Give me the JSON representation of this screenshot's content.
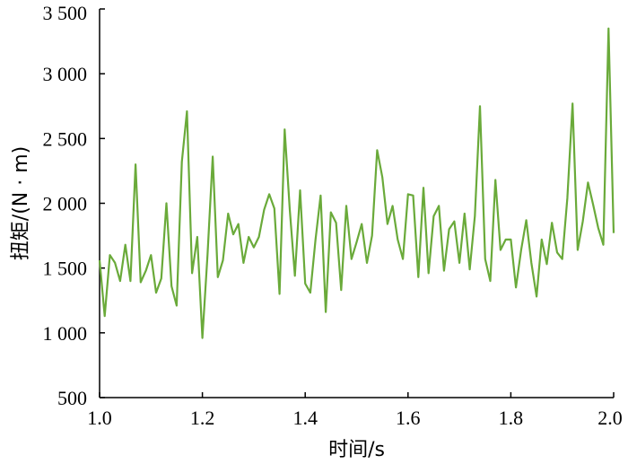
{
  "chart_data": {
    "type": "line",
    "xlabel": "时间/s",
    "ylabel": "扭矩/(N · m)",
    "xlim": [
      1.0,
      2.0
    ],
    "ylim": [
      500,
      3500
    ],
    "x_ticks": [
      {
        "value": 1.0,
        "label": "1.0"
      },
      {
        "value": 1.2,
        "label": "1.2"
      },
      {
        "value": 1.4,
        "label": "1.4"
      },
      {
        "value": 1.6,
        "label": "1.6"
      },
      {
        "value": 1.8,
        "label": "1.8"
      },
      {
        "value": 2.0,
        "label": "2.0"
      }
    ],
    "y_ticks": [
      {
        "value": 500,
        "label": "500"
      },
      {
        "value": 1000,
        "label": "1 000"
      },
      {
        "value": 1500,
        "label": "1 500"
      },
      {
        "value": 2000,
        "label": "2 000"
      },
      {
        "value": 2500,
        "label": "2 500"
      },
      {
        "value": 3000,
        "label": "3 000"
      },
      {
        "value": 3500,
        "label": "3 500"
      }
    ],
    "grid": false,
    "line_color": "#6aaa3a",
    "series": [
      {
        "x": [
          1.0,
          1.01,
          1.02,
          1.03,
          1.04,
          1.05,
          1.06,
          1.07,
          1.08,
          1.09,
          1.1,
          1.11,
          1.12,
          1.13,
          1.14,
          1.15,
          1.16,
          1.17,
          1.18,
          1.19,
          1.2,
          1.21,
          1.22,
          1.23,
          1.24,
          1.25,
          1.26,
          1.27,
          1.28,
          1.29,
          1.3,
          1.31,
          1.32,
          1.33,
          1.34,
          1.35,
          1.36,
          1.37,
          1.38,
          1.39,
          1.4,
          1.41,
          1.42,
          1.43,
          1.44,
          1.45,
          1.46,
          1.47,
          1.48,
          1.49,
          1.5,
          1.51,
          1.52,
          1.53,
          1.54,
          1.55,
          1.56,
          1.57,
          1.58,
          1.59,
          1.6,
          1.61,
          1.62,
          1.63,
          1.64,
          1.65,
          1.66,
          1.67,
          1.68,
          1.69,
          1.7,
          1.71,
          1.72,
          1.73,
          1.74,
          1.75,
          1.76,
          1.77,
          1.78,
          1.79,
          1.8,
          1.81,
          1.82,
          1.83,
          1.84,
          1.85,
          1.86,
          1.87,
          1.88,
          1.89,
          1.9,
          1.91,
          1.92,
          1.93,
          1.94,
          1.95,
          1.96,
          1.97,
          1.98,
          1.99,
          2.0
        ],
        "values": [
          1560,
          1130,
          1600,
          1540,
          1400,
          1680,
          1400,
          2300,
          1390,
          1480,
          1600,
          1310,
          1420,
          2000,
          1360,
          1210,
          2320,
          2710,
          1460,
          1740,
          960,
          1600,
          2360,
          1430,
          1560,
          1920,
          1760,
          1840,
          1540,
          1740,
          1660,
          1740,
          1950,
          2070,
          1960,
          1300,
          2570,
          1950,
          1440,
          2100,
          1380,
          1310,
          1720,
          2060,
          1160,
          1930,
          1850,
          1330,
          1980,
          1570,
          1700,
          1840,
          1540,
          1750,
          2410,
          2200,
          1840,
          1980,
          1720,
          1570,
          2070,
          2060,
          1430,
          2120,
          1460,
          1900,
          1980,
          1480,
          1800,
          1860,
          1540,
          1920,
          1490,
          1900,
          2750,
          1570,
          1400,
          2180,
          1640,
          1720,
          1720,
          1350,
          1640,
          1870,
          1540,
          1280,
          1720,
          1530,
          1850,
          1620,
          1570,
          2040,
          2770,
          1640,
          1860,
          2160,
          1990,
          1810,
          1680,
          3350,
          1770
        ]
      }
    ]
  }
}
